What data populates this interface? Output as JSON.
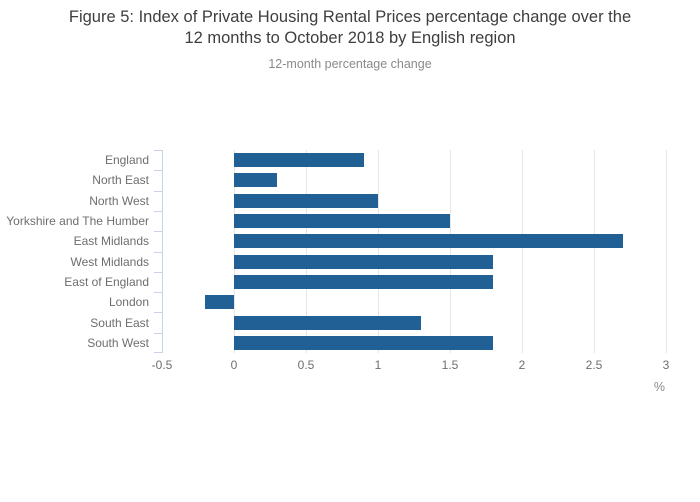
{
  "title_lines": [
    "Figure 5: Index of Private Housing Rental Prices percentage change over the",
    "12 months to October 2018 by English region"
  ],
  "chart_data": {
    "type": "bar",
    "orientation": "horizontal",
    "title": "Figure 5: Index of Private Housing Rental Prices percentage change over the 12 months to October 2018 by English region",
    "subtitle": "12-month percentage change",
    "categories": [
      "England",
      "North East",
      "North West",
      "Yorkshire and The Humber",
      "East Midlands",
      "West Midlands",
      "East of England",
      "London",
      "South East",
      "South West"
    ],
    "values": [
      0.9,
      0.3,
      1.0,
      1.5,
      2.7,
      1.8,
      1.8,
      -0.2,
      1.3,
      1.8
    ],
    "xlabel": "%",
    "ylabel": "",
    "xlim": [
      -0.5,
      3
    ],
    "xticks": [
      -0.5,
      0,
      0.5,
      1,
      1.5,
      2,
      2.5,
      3
    ],
    "xtick_labels": [
      "-0.5",
      "0",
      "0.5",
      "1",
      "1.5",
      "2",
      "2.5",
      "3"
    ],
    "grid": true,
    "legend": false,
    "colors": {
      "bar": "#206095",
      "axis_line": "#c7d3e6",
      "gridline": "#e6e6e6",
      "title_text": "#3e3e3e",
      "subtitle_text": "#8a8a8a",
      "tick_text": "#6e6e6e"
    }
  }
}
